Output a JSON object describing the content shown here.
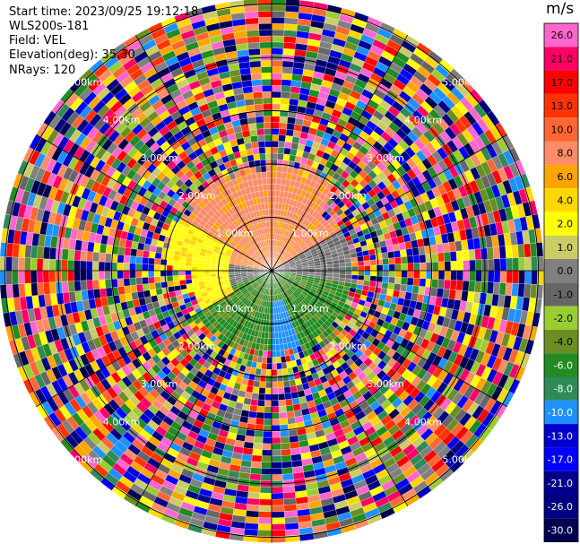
{
  "header": {
    "start_time": "Start time: 2023/09/25 19:12:18",
    "instrument": "WLS200s-181",
    "field": "Field: VEL",
    "elevation": "Elevation(deg): 35.30",
    "nrays": "NRays: 120"
  },
  "chart_data": {
    "type": "heatmap",
    "projection": "polar (PPI)",
    "field": "VEL",
    "units": "m/s",
    "nrays": 120,
    "elevation_deg": 35.3,
    "range_rings_km": [
      1.0,
      2.0,
      3.0,
      4.0,
      5.0
    ],
    "range_ring_labels": [
      "1.00km",
      "2.00km",
      "3.00km",
      "4.00km",
      "5.00km"
    ],
    "colorbar": {
      "unit": "m/s",
      "ticks": [
        "26.0",
        "21.0",
        "17.0",
        "13.0",
        "10.0",
        "8.0",
        "6.0",
        "4.0",
        "2.0",
        "1.0",
        "0.0",
        "-1.0",
        "-2.0",
        "-4.0",
        "-6.0",
        "-8.0",
        "-10.0",
        "-13.0",
        "-17.0",
        "-21.0",
        "-26.0",
        "-30.0"
      ],
      "colors": [
        "#ff66cc",
        "#ff0066",
        "#ff0000",
        "#ff3300",
        "#ff6633",
        "#ff8c66",
        "#ffa500",
        "#ffd700",
        "#ffff00",
        "#cccc66",
        "#808080",
        "#666666",
        "#9acd32",
        "#6b8e23",
        "#228b22",
        "#2e8b57",
        "#1e90ff",
        "#0000cd",
        "#0000ff",
        "#00008b",
        "#000080",
        "#000050"
      ]
    },
    "summary_zones": [
      {
        "sector": "north (upper half, near range)",
        "velocity_ms": 8.0,
        "color": "#ff8c66"
      },
      {
        "sector": "west inner band",
        "velocity_ms": 2.0,
        "color": "#ffff00"
      },
      {
        "sector": "east inner band",
        "velocity_ms": 0.0,
        "color": "#808080"
      },
      {
        "sector": "south (lower half, near range)",
        "velocity_ms": -6.0,
        "color": "#228b22"
      },
      {
        "sector": "south-southeast pocket",
        "velocity_ms": -10.0,
        "color": "#1e90ff"
      },
      {
        "sector": "far range (beyond ~2 km)",
        "velocity_ms": null,
        "note": "noisy / aliased, all colors"
      }
    ]
  }
}
